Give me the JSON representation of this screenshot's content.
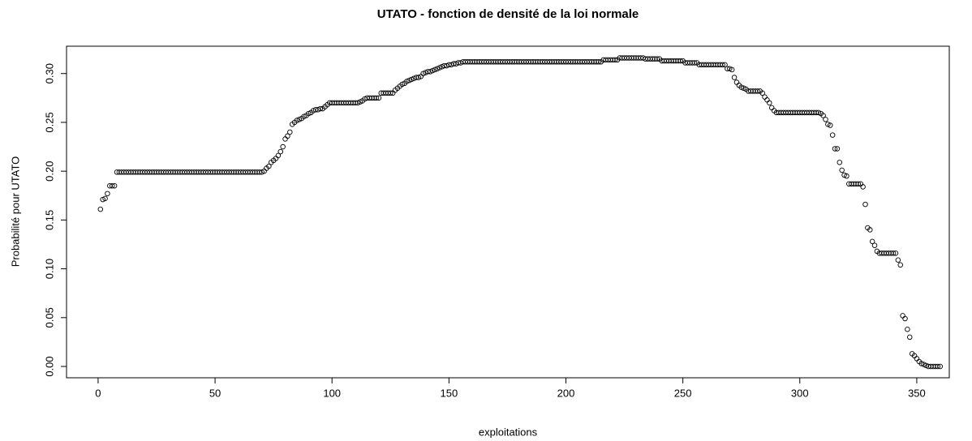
{
  "chart_data": {
    "type": "scatter",
    "title": "UTATO - fonction de densité de la loi normale",
    "x_label": "exploitations",
    "y_label": "Probabilité pour UTATO",
    "color": "#000000",
    "xlim": [
      -13.5,
      363.9
    ],
    "ylim": [
      -0.0116,
      0.328
    ],
    "xticks": [
      0,
      50,
      100,
      150,
      200,
      250,
      300,
      350
    ],
    "yticks": [
      {
        "value": 0,
        "label": "0.00"
      },
      {
        "value": 0.05,
        "label": "0.05"
      },
      {
        "value": 0.1,
        "label": "0.10"
      },
      {
        "value": 0.15,
        "label": "0.15"
      },
      {
        "value": 0.2,
        "label": "0.20"
      },
      {
        "value": 0.25,
        "label": "0.25"
      },
      {
        "value": 0.3,
        "label": "0.30"
      }
    ],
    "x": [
      1,
      2,
      3,
      4,
      5,
      6,
      7,
      8,
      9,
      10,
      11,
      12,
      13,
      14,
      15,
      16,
      17,
      18,
      19,
      20,
      21,
      22,
      23,
      24,
      25,
      26,
      27,
      28,
      29,
      30,
      31,
      32,
      33,
      34,
      35,
      36,
      37,
      38,
      39,
      40,
      41,
      42,
      43,
      44,
      45,
      46,
      47,
      48,
      49,
      50,
      51,
      52,
      53,
      54,
      55,
      56,
      57,
      58,
      59,
      60,
      61,
      62,
      63,
      64,
      65,
      66,
      67,
      68,
      69,
      70,
      71,
      72,
      73,
      74,
      75,
      76,
      77,
      78,
      79,
      80,
      81,
      82,
      83,
      84,
      85,
      86,
      87,
      88,
      89,
      90,
      91,
      92,
      93,
      94,
      95,
      96,
      97,
      98,
      99,
      100,
      101,
      102,
      103,
      104,
      105,
      106,
      107,
      108,
      109,
      110,
      111,
      112,
      113,
      114,
      115,
      116,
      117,
      118,
      119,
      120,
      121,
      122,
      123,
      124,
      125,
      126,
      127,
      128,
      129,
      130,
      131,
      132,
      133,
      134,
      135,
      136,
      137,
      138,
      139,
      140,
      141,
      142,
      143,
      144,
      145,
      146,
      147,
      148,
      149,
      150,
      151,
      152,
      153,
      154,
      155,
      156,
      157,
      158,
      159,
      160,
      161,
      162,
      163,
      164,
      165,
      166,
      167,
      168,
      169,
      170,
      171,
      172,
      173,
      174,
      175,
      176,
      177,
      178,
      179,
      180,
      181,
      182,
      183,
      184,
      185,
      186,
      187,
      188,
      189,
      190,
      191,
      192,
      193,
      194,
      195,
      196,
      197,
      198,
      199,
      200,
      201,
      202,
      203,
      204,
      205,
      206,
      207,
      208,
      209,
      210,
      211,
      212,
      213,
      214,
      215,
      216,
      217,
      218,
      219,
      220,
      221,
      222,
      223,
      224,
      225,
      226,
      227,
      228,
      229,
      230,
      231,
      232,
      233,
      234,
      235,
      236,
      237,
      238,
      239,
      240,
      241,
      242,
      243,
      244,
      245,
      246,
      247,
      248,
      249,
      250,
      251,
      252,
      253,
      254,
      255,
      256,
      257,
      258,
      259,
      260,
      261,
      262,
      263,
      264,
      265,
      266,
      267,
      268,
      269,
      270,
      271,
      272,
      273,
      274,
      275,
      276,
      277,
      278,
      279,
      280,
      281,
      282,
      283,
      284,
      285,
      286,
      287,
      288,
      289,
      290,
      291,
      292,
      293,
      294,
      295,
      296,
      297,
      298,
      299,
      300,
      301,
      302,
      303,
      304,
      305,
      306,
      307,
      308,
      309,
      310,
      311,
      312,
      313,
      314,
      315,
      316,
      317,
      318,
      319,
      320,
      321,
      322,
      323,
      324,
      325,
      326,
      327,
      328,
      329,
      330,
      331,
      332,
      333,
      334,
      335,
      336,
      337,
      338,
      339,
      340,
      341,
      342,
      343,
      344,
      345,
      346,
      347,
      348,
      349,
      350,
      351,
      352,
      353,
      354,
      355,
      356,
      357,
      358,
      359,
      360
    ],
    "values": [
      0.161,
      0.171,
      0.172,
      0.177,
      0.185,
      0.185,
      0.185,
      0.199,
      0.199,
      0.199,
      0.199,
      0.199,
      0.199,
      0.199,
      0.199,
      0.199,
      0.199,
      0.199,
      0.199,
      0.199,
      0.199,
      0.199,
      0.199,
      0.199,
      0.199,
      0.199,
      0.199,
      0.199,
      0.199,
      0.199,
      0.199,
      0.199,
      0.199,
      0.199,
      0.199,
      0.199,
      0.199,
      0.199,
      0.199,
      0.199,
      0.199,
      0.199,
      0.199,
      0.199,
      0.199,
      0.199,
      0.199,
      0.199,
      0.199,
      0.199,
      0.199,
      0.199,
      0.199,
      0.199,
      0.199,
      0.199,
      0.199,
      0.199,
      0.199,
      0.199,
      0.199,
      0.199,
      0.199,
      0.199,
      0.199,
      0.199,
      0.199,
      0.199,
      0.199,
      0.199,
      0.2,
      0.203,
      0.205,
      0.209,
      0.211,
      0.213,
      0.216,
      0.22,
      0.225,
      0.233,
      0.236,
      0.24,
      0.248,
      0.25,
      0.252,
      0.253,
      0.254,
      0.256,
      0.257,
      0.259,
      0.26,
      0.262,
      0.263,
      0.263,
      0.264,
      0.264,
      0.266,
      0.268,
      0.27,
      0.27,
      0.27,
      0.27,
      0.27,
      0.27,
      0.27,
      0.27,
      0.27,
      0.27,
      0.27,
      0.27,
      0.27,
      0.271,
      0.272,
      0.274,
      0.275,
      0.275,
      0.275,
      0.275,
      0.275,
      0.275,
      0.28,
      0.28,
      0.28,
      0.28,
      0.28,
      0.28,
      0.283,
      0.285,
      0.287,
      0.289,
      0.29,
      0.292,
      0.293,
      0.294,
      0.295,
      0.296,
      0.296,
      0.297,
      0.3,
      0.301,
      0.302,
      0.302,
      0.303,
      0.304,
      0.305,
      0.306,
      0.307,
      0.308,
      0.308,
      0.309,
      0.309,
      0.31,
      0.31,
      0.311,
      0.311,
      0.312,
      0.312,
      0.312,
      0.312,
      0.312,
      0.312,
      0.312,
      0.312,
      0.312,
      0.312,
      0.312,
      0.312,
      0.312,
      0.312,
      0.312,
      0.312,
      0.312,
      0.312,
      0.312,
      0.312,
      0.312,
      0.312,
      0.312,
      0.312,
      0.312,
      0.312,
      0.312,
      0.312,
      0.312,
      0.312,
      0.312,
      0.312,
      0.312,
      0.312,
      0.312,
      0.312,
      0.312,
      0.312,
      0.312,
      0.312,
      0.312,
      0.312,
      0.312,
      0.312,
      0.312,
      0.312,
      0.312,
      0.312,
      0.312,
      0.312,
      0.312,
      0.312,
      0.312,
      0.312,
      0.312,
      0.312,
      0.312,
      0.312,
      0.312,
      0.312,
      0.314,
      0.314,
      0.314,
      0.314,
      0.314,
      0.314,
      0.314,
      0.316,
      0.316,
      0.316,
      0.316,
      0.316,
      0.316,
      0.316,
      0.316,
      0.316,
      0.316,
      0.316,
      0.315,
      0.315,
      0.315,
      0.315,
      0.315,
      0.315,
      0.315,
      0.313,
      0.313,
      0.313,
      0.313,
      0.313,
      0.313,
      0.313,
      0.313,
      0.313,
      0.313,
      0.311,
      0.311,
      0.311,
      0.311,
      0.311,
      0.311,
      0.309,
      0.309,
      0.309,
      0.309,
      0.309,
      0.309,
      0.309,
      0.309,
      0.309,
      0.309,
      0.309,
      0.309,
      0.305,
      0.305,
      0.304,
      0.296,
      0.291,
      0.288,
      0.286,
      0.285,
      0.284,
      0.282,
      0.282,
      0.282,
      0.282,
      0.282,
      0.282,
      0.28,
      0.276,
      0.273,
      0.27,
      0.265,
      0.262,
      0.26,
      0.26,
      0.26,
      0.26,
      0.26,
      0.26,
      0.26,
      0.26,
      0.26,
      0.26,
      0.26,
      0.26,
      0.26,
      0.26,
      0.26,
      0.26,
      0.26,
      0.26,
      0.26,
      0.259,
      0.257,
      0.253,
      0.248,
      0.247,
      0.237,
      0.223,
      0.223,
      0.209,
      0.201,
      0.196,
      0.195,
      0.187,
      0.187,
      0.187,
      0.187,
      0.187,
      0.187,
      0.184,
      0.166,
      0.142,
      0.14,
      0.128,
      0.124,
      0.118,
      0.116,
      0.116,
      0.116,
      0.116,
      0.116,
      0.116,
      0.116,
      0.116,
      0.109,
      0.104,
      0.052,
      0.049,
      0.038,
      0.03,
      0.013,
      0.011,
      0.008,
      0.005,
      0.003,
      0.002,
      0.001,
      0,
      0,
      0,
      0,
      0,
      0
    ]
  }
}
